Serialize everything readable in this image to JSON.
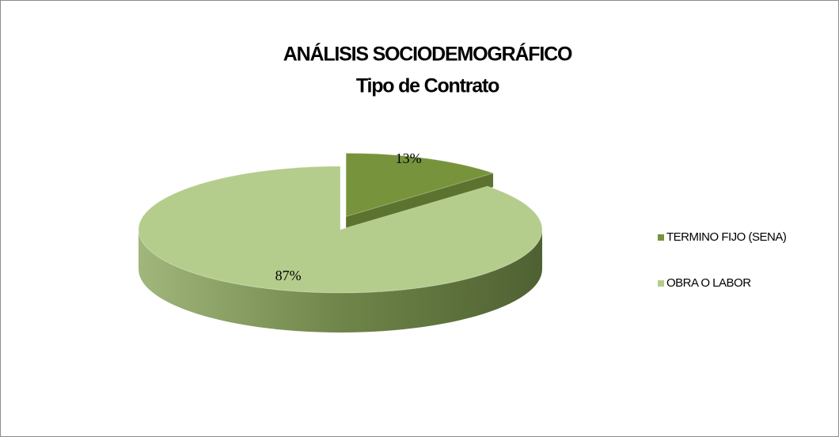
{
  "chart_data": {
    "type": "pie",
    "title": "ANÁLISIS SOCIODEMOGRÁFICO",
    "subtitle": "Tipo de Contrato",
    "categories": [
      "TERMINO FIJO (SENA)",
      "OBRA O LABOR"
    ],
    "values": [
      13,
      87
    ],
    "value_labels": [
      "13%",
      "87%"
    ],
    "colors": [
      "#77933c",
      "#b5cd8c"
    ],
    "legend": "right"
  }
}
